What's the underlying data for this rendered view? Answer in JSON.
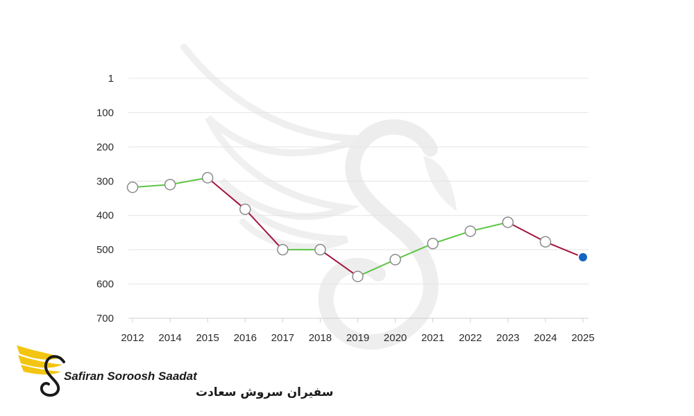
{
  "chart_data": {
    "type": "line",
    "title": "",
    "xlabel": "",
    "ylabel": "",
    "y_inverted": true,
    "ylim": [
      0,
      700
    ],
    "y_ticks": [
      1,
      100,
      200,
      300,
      400,
      500,
      600,
      700
    ],
    "categories": [
      "2012",
      "2014",
      "2015",
      "2016",
      "2017",
      "2018",
      "2019",
      "2020",
      "2021",
      "2022",
      "2023",
      "2024",
      "2025"
    ],
    "series": [
      {
        "values": [
          318,
          310,
          290,
          382,
          500,
          500,
          578,
          529,
          482,
          446,
          420,
          477,
          522
        ]
      }
    ],
    "colors": {
      "rise": "#5cc542",
      "fall": "#a3143c",
      "marker_fill": "#ffffff",
      "marker_stroke": "#8a8a8a",
      "last_marker": "#1565c0",
      "grid": "#e4e4e4"
    },
    "grid": true,
    "legend": "none"
  },
  "logo": {
    "name_en": "Safiran Soroosh Saadat",
    "name_fa": "سفیران سروش سعادت",
    "colors": {
      "wing": "#f2c511",
      "text": "#1a1a1a"
    },
    "icon": "swan-wing-icon"
  }
}
